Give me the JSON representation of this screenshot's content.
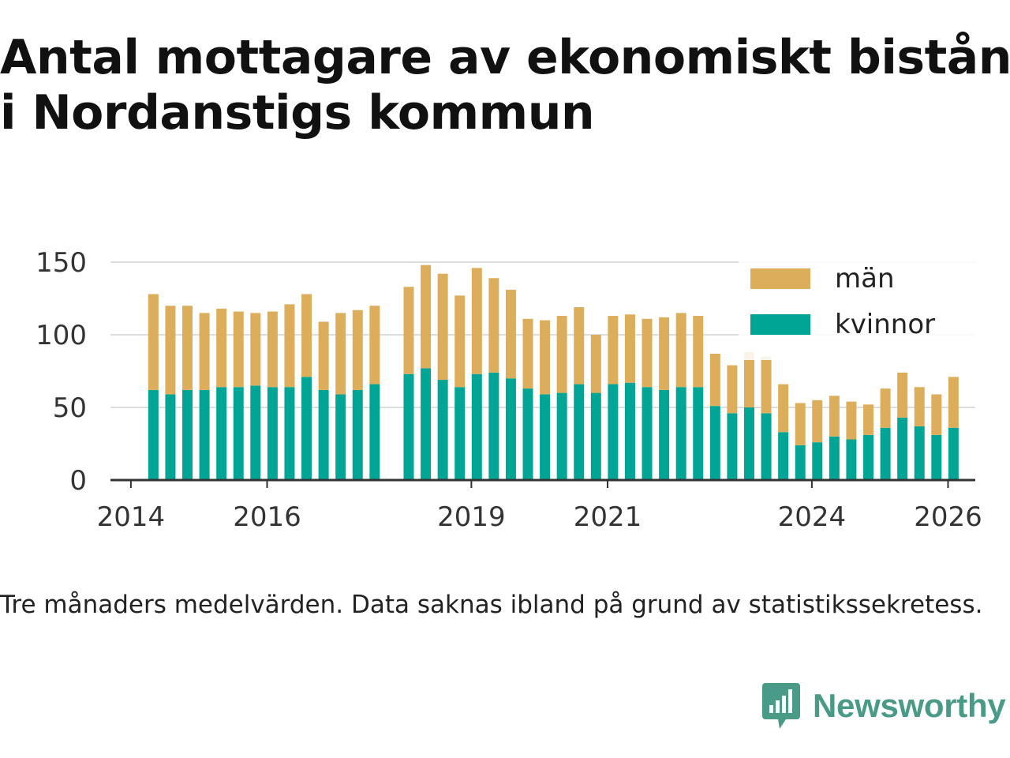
{
  "title_line1": "Antal mottagare av ekonomiskt bistånd",
  "title_line2": "i Nordanstigs kommun",
  "footnote": "Tre månaders medelvärden. Data saknas ibland på grund av statistikssekretess.",
  "brand": {
    "name": "Newsworthy",
    "icon": "newsworthy-logo-icon"
  },
  "colors": {
    "man": "#dcae5c",
    "kvinnor": "#00a596",
    "grid": "#dddddd",
    "axis": "#333333",
    "text": "#333333"
  },
  "chart_data": {
    "type": "bar",
    "stacked": true,
    "x_ticks": [
      "2014",
      "2016",
      "2019",
      "2021",
      "2024",
      "2026"
    ],
    "y_ticks": [
      "0",
      "50",
      "100",
      "150"
    ],
    "ylim": [
      0,
      150
    ],
    "xlim": [
      2013.7,
      2026.4
    ],
    "legend": {
      "position": "top-right",
      "entries": [
        "män",
        "kvinnor"
      ]
    },
    "periods": [
      2014.33,
      2014.58,
      2014.83,
      2015.08,
      2015.33,
      2015.58,
      2015.83,
      2016.08,
      2016.33,
      2016.58,
      2016.83,
      2017.08,
      2017.33,
      2017.58,
      2018.08,
      2018.33,
      2018.58,
      2018.83,
      2019.08,
      2019.33,
      2019.58,
      2019.83,
      2020.08,
      2020.33,
      2020.58,
      2020.83,
      2021.08,
      2021.33,
      2021.58,
      2021.83,
      2022.08,
      2022.33,
      2022.58,
      2022.83,
      2023.08,
      2023.33,
      2023.58,
      2023.83,
      2024.08,
      2024.33,
      2024.58,
      2024.83,
      2025.08,
      2025.33,
      2025.58,
      2025.83,
      2026.08
    ],
    "series": [
      {
        "name": "kvinnor",
        "values": [
          62,
          59,
          62,
          62,
          64,
          64,
          65,
          64,
          64,
          71,
          62,
          59,
          62,
          66,
          73,
          77,
          69,
          64,
          73,
          74,
          70,
          63,
          59,
          60,
          66,
          60,
          66,
          67,
          64,
          62,
          64,
          64,
          51,
          46,
          50,
          46,
          33,
          24,
          26,
          30,
          28,
          31,
          36,
          43,
          37,
          31,
          36
        ]
      },
      {
        "name": "män",
        "values": [
          66,
          61,
          58,
          53,
          54,
          52,
          50,
          52,
          57,
          57,
          47,
          56,
          55,
          54,
          60,
          71,
          73,
          63,
          73,
          65,
          61,
          48,
          51,
          53,
          53,
          40,
          47,
          47,
          47,
          50,
          51,
          49,
          36,
          33,
          38,
          39,
          33,
          29,
          29,
          28,
          26,
          21,
          27,
          31,
          27,
          28,
          35
        ]
      }
    ]
  }
}
